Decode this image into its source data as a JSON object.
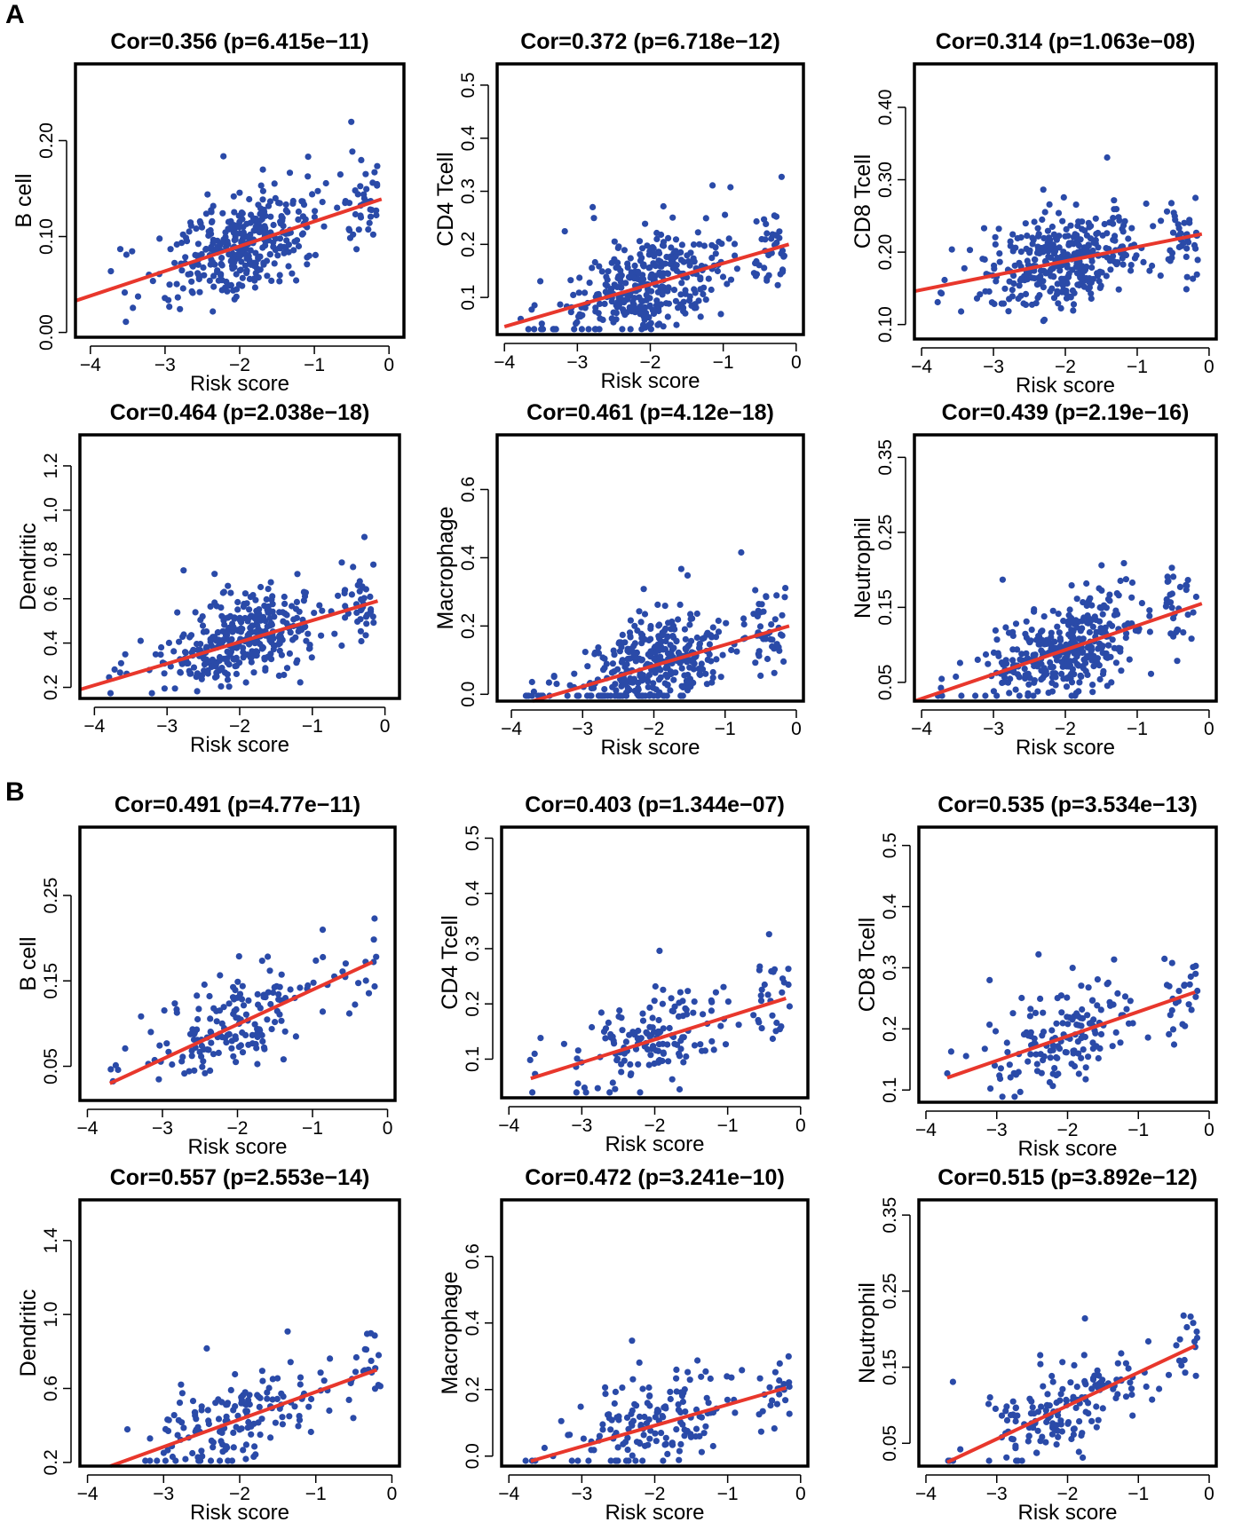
{
  "figure": {
    "panel_labels": [
      "A",
      "B"
    ],
    "colors": {
      "point": "#2a4aa8",
      "fit_line": "#e8372c",
      "frame": "#000000"
    }
  },
  "chart_data": [
    {
      "panel": "A",
      "type": "scatter",
      "title": "Cor=0.356 (p=6.415e−11)",
      "xlabel": "Risk score",
      "ylabel": "B cell",
      "xlim": [
        -4.2,
        0.2
      ],
      "ylim": [
        -0.005,
        0.28
      ],
      "xticks": [
        -4,
        -3,
        -2,
        -1,
        0
      ],
      "xtick_labels": [
        "−4",
        "−3",
        "−2",
        "−1",
        "0"
      ],
      "yticks": [
        0.0,
        0.1,
        0.2
      ],
      "ytick_labels": [
        "0.00",
        "0.10",
        "0.20"
      ],
      "fit": {
        "x": [
          -4.2,
          -0.1
        ],
        "y": [
          0.033,
          0.139
        ]
      },
      "n_points": 400,
      "seed": 11
    },
    {
      "panel": "A",
      "type": "scatter",
      "title": "Cor=0.372 (p=6.718e−12)",
      "xlabel": "Risk score",
      "ylabel": "CD4 Tcell",
      "xlim": [
        -4.1,
        0.1
      ],
      "ylim": [
        0.03,
        0.54
      ],
      "xticks": [
        -4,
        -3,
        -2,
        -1,
        0
      ],
      "xtick_labels": [
        "−4",
        "−3",
        "−2",
        "−1",
        "0"
      ],
      "yticks": [
        0.1,
        0.2,
        0.3,
        0.4,
        0.5
      ],
      "ytick_labels": [
        "0.1",
        "0.2",
        "0.3",
        "0.4",
        "0.5"
      ],
      "fit": {
        "x": [
          -4.0,
          -0.1
        ],
        "y": [
          0.045,
          0.2
        ]
      },
      "n_points": 400,
      "seed": 12
    },
    {
      "panel": "A",
      "type": "scatter",
      "title": "Cor=0.314 (p=1.063e−08)",
      "xlabel": "Risk score",
      "ylabel": "CD8 Tcell",
      "xlim": [
        -4.1,
        0.1
      ],
      "ylim": [
        0.08,
        0.46
      ],
      "xticks": [
        -4,
        -3,
        -2,
        -1,
        0
      ],
      "xtick_labels": [
        "−4",
        "−3",
        "−2",
        "−1",
        "0"
      ],
      "yticks": [
        0.1,
        0.2,
        0.3,
        0.4
      ],
      "ytick_labels": [
        "0.10",
        "0.20",
        "0.30",
        "0.40"
      ],
      "fit": {
        "x": [
          -4.1,
          -0.1
        ],
        "y": [
          0.146,
          0.225
        ]
      },
      "n_points": 400,
      "seed": 13
    },
    {
      "panel": "A",
      "type": "scatter",
      "title": "Cor=0.464 (p=2.038e−18)",
      "xlabel": "Risk score",
      "ylabel": "Dendritic",
      "xlim": [
        -4.2,
        0.2
      ],
      "ylim": [
        0.15,
        1.34
      ],
      "xticks": [
        -4,
        -3,
        -2,
        -1,
        0
      ],
      "xtick_labels": [
        "−4",
        "−3",
        "−2",
        "−1",
        "0"
      ],
      "yticks": [
        0.2,
        0.4,
        0.6,
        0.8,
        1.0,
        1.2
      ],
      "ytick_labels": [
        "0.2",
        "0.4",
        "0.6",
        "0.8",
        "1.0",
        "1.2"
      ],
      "fit": {
        "x": [
          -4.2,
          -0.1
        ],
        "y": [
          0.19,
          0.59
        ]
      },
      "n_points": 400,
      "seed": 14
    },
    {
      "panel": "A",
      "type": "scatter",
      "title": "Cor=0.461 (p=4.12e−18)",
      "xlabel": "Risk score",
      "ylabel": "Macrophage",
      "xlim": [
        -4.2,
        0.1
      ],
      "ylim": [
        -0.02,
        0.76
      ],
      "xticks": [
        -4,
        -3,
        -2,
        -1,
        0
      ],
      "xtick_labels": [
        "−4",
        "−3",
        "−2",
        "−1",
        "0"
      ],
      "yticks": [
        0.0,
        0.2,
        0.4,
        0.6
      ],
      "ytick_labels": [
        "0.0",
        "0.2",
        "0.4",
        "0.6"
      ],
      "fit": {
        "x": [
          -3.7,
          -0.1
        ],
        "y": [
          -0.02,
          0.2
        ]
      },
      "n_points": 400,
      "seed": 15
    },
    {
      "panel": "A",
      "type": "scatter",
      "title": "Cor=0.439 (p=2.19e−16)",
      "xlabel": "Risk score",
      "ylabel": "Neutrophil",
      "xlim": [
        -4.1,
        0.1
      ],
      "ylim": [
        0.025,
        0.38
      ],
      "xticks": [
        -4,
        -3,
        -2,
        -1,
        0
      ],
      "xtick_labels": [
        "−4",
        "−3",
        "−2",
        "−1",
        "0"
      ],
      "yticks": [
        0.05,
        0.15,
        0.25,
        0.35
      ],
      "ytick_labels": [
        "0.05",
        "0.15",
        "0.25",
        "0.35"
      ],
      "fit": {
        "x": [
          -4.1,
          -0.1
        ],
        "y": [
          0.025,
          0.155
        ]
      },
      "n_points": 400,
      "seed": 16
    },
    {
      "panel": "B",
      "type": "scatter",
      "title": "Cor=0.491 (p=4.77e−11)",
      "xlabel": "Risk score",
      "ylabel": "B cell",
      "xlim": [
        -4.1,
        0.1
      ],
      "ylim": [
        0.01,
        0.33
      ],
      "xticks": [
        -4,
        -3,
        -2,
        -1,
        0
      ],
      "xtick_labels": [
        "−4",
        "−3",
        "−2",
        "−1",
        "0"
      ],
      "yticks": [
        0.05,
        0.15,
        0.25
      ],
      "ytick_labels": [
        "0.05",
        "0.15",
        "0.25"
      ],
      "fit": {
        "x": [
          -3.7,
          -0.2
        ],
        "y": [
          0.03,
          0.172
        ]
      },
      "n_points": 180,
      "seed": 21
    },
    {
      "panel": "B",
      "type": "scatter",
      "title": "Cor=0.403 (p=1.344e−07)",
      "xlabel": "Risk score",
      "ylabel": "CD4 Tcell",
      "xlim": [
        -4.1,
        0.1
      ],
      "ylim": [
        0.03,
        0.52
      ],
      "xticks": [
        -4,
        -3,
        -2,
        -1,
        0
      ],
      "xtick_labels": [
        "−4",
        "−3",
        "−2",
        "−1",
        "0"
      ],
      "yticks": [
        0.1,
        0.2,
        0.3,
        0.4,
        0.5
      ],
      "ytick_labels": [
        "0.1",
        "0.2",
        "0.3",
        "0.4",
        "0.5"
      ],
      "fit": {
        "x": [
          -3.7,
          -0.2
        ],
        "y": [
          0.065,
          0.21
        ]
      },
      "n_points": 180,
      "seed": 22
    },
    {
      "panel": "B",
      "type": "scatter",
      "title": "Cor=0.535 (p=3.534e−13)",
      "xlabel": "Risk score",
      "ylabel": "CD8 Tcell",
      "xlim": [
        -4.1,
        0.1
      ],
      "ylim": [
        0.08,
        0.53
      ],
      "xticks": [
        -4,
        -3,
        -2,
        -1,
        0
      ],
      "xtick_labels": [
        "−4",
        "−3",
        "−2",
        "−1",
        "0"
      ],
      "yticks": [
        0.1,
        0.2,
        0.3,
        0.4,
        0.5
      ],
      "ytick_labels": [
        "0.1",
        "0.2",
        "0.3",
        "0.4",
        "0.5"
      ],
      "fit": {
        "x": [
          -3.7,
          -0.2
        ],
        "y": [
          0.12,
          0.26
        ]
      },
      "n_points": 180,
      "seed": 23
    },
    {
      "panel": "B",
      "type": "scatter",
      "title": "Cor=0.557 (p=2.553e−14)",
      "xlabel": "Risk score",
      "ylabel": "Dendritic",
      "xlim": [
        -4.1,
        0.1
      ],
      "ylim": [
        0.18,
        1.62
      ],
      "xticks": [
        -4,
        -3,
        -2,
        -1,
        0
      ],
      "xtick_labels": [
        "−4",
        "−3",
        "−2",
        "−1",
        "0"
      ],
      "yticks": [
        0.2,
        0.6,
        1.0,
        1.4
      ],
      "ytick_labels": [
        "0.2",
        "0.6",
        "1.0",
        "1.4"
      ],
      "fit": {
        "x": [
          -3.7,
          -0.2
        ],
        "y": [
          0.18,
          0.7
        ]
      },
      "n_points": 180,
      "seed": 24
    },
    {
      "panel": "B",
      "type": "scatter",
      "title": "Cor=0.472 (p=3.241e−10)",
      "xlabel": "Risk score",
      "ylabel": "Macrophage",
      "xlim": [
        -4.1,
        0.1
      ],
      "ylim": [
        -0.03,
        0.77
      ],
      "xticks": [
        -4,
        -3,
        -2,
        -1,
        0
      ],
      "xtick_labels": [
        "−4",
        "−3",
        "−2",
        "−1",
        "0"
      ],
      "yticks": [
        0.0,
        0.2,
        0.4,
        0.6
      ],
      "ytick_labels": [
        "0.0",
        "0.2",
        "0.4",
        "0.6"
      ],
      "fit": {
        "x": [
          -3.7,
          -0.2
        ],
        "y": [
          -0.015,
          0.205
        ]
      },
      "n_points": 180,
      "seed": 25
    },
    {
      "panel": "B",
      "type": "scatter",
      "title": "Cor=0.515 (p=3.892e−12)",
      "xlabel": "Risk score",
      "ylabel": "Neutrophil",
      "xlim": [
        -4.1,
        0.1
      ],
      "ylim": [
        0.02,
        0.37
      ],
      "xticks": [
        -4,
        -3,
        -2,
        -1,
        0
      ],
      "xtick_labels": [
        "−4",
        "−3",
        "−2",
        "−1",
        "0"
      ],
      "yticks": [
        0.05,
        0.15,
        0.25,
        0.35
      ],
      "ytick_labels": [
        "0.05",
        "0.15",
        "0.25",
        "0.35"
      ],
      "fit": {
        "x": [
          -3.7,
          -0.2
        ],
        "y": [
          0.025,
          0.178
        ]
      },
      "n_points": 180,
      "seed": 26
    }
  ]
}
